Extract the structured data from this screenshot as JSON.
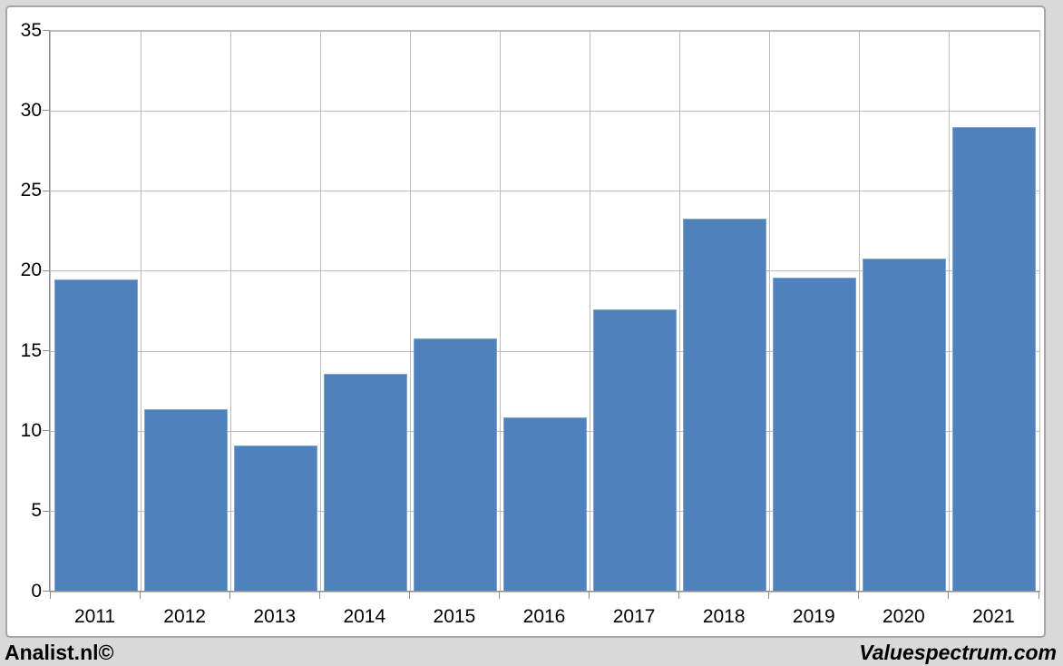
{
  "chart_data": {
    "type": "bar",
    "title": "",
    "categories": [
      "2011",
      "2012",
      "2013",
      "2014",
      "2015",
      "2016",
      "2017",
      "2018",
      "2019",
      "2020",
      "2021"
    ],
    "values": [
      19.5,
      11.4,
      9.1,
      13.6,
      15.8,
      10.9,
      17.6,
      23.3,
      19.6,
      20.8,
      29.0
    ],
    "xlabel": "",
    "ylabel": "",
    "ylim": [
      0,
      35
    ],
    "yticks": [
      0,
      5,
      10,
      15,
      20,
      25,
      30,
      35
    ],
    "grid": true,
    "legend": false,
    "bar_color": "#4F81BD"
  },
  "footer": {
    "left_text": "Analist.nl©",
    "right_text": "Valuespectrum.com"
  },
  "colors": {
    "bar": "#4F81BD",
    "bar_edge": "#7FA5D2",
    "gridline": "#BCBCBC",
    "axis": "#8E8E8E",
    "chart_border": "#A6A6A6",
    "chart_background": "#FFFFFF",
    "page_background": "#D9D9D9",
    "label_text": "#000000"
  }
}
